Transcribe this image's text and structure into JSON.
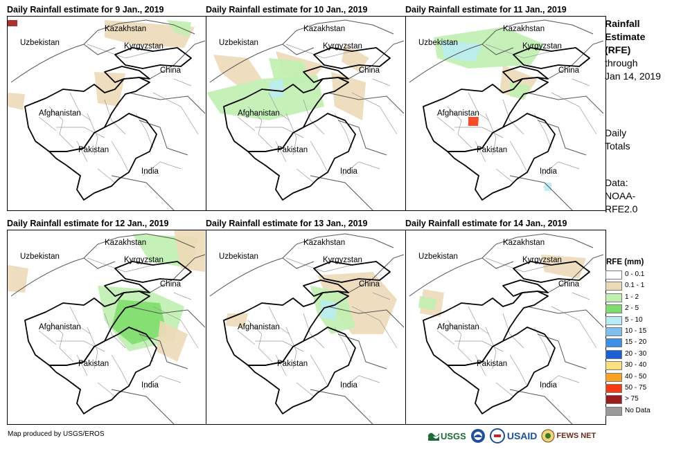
{
  "panels": [
    {
      "title": "Daily Rainfall estimate for 9 Jan., 2019"
    },
    {
      "title": "Daily Rainfall estimate for 10 Jan., 2019"
    },
    {
      "title": "Daily Rainfall estimate for 11 Jan., 2019"
    },
    {
      "title": "Daily Rainfall estimate for 12 Jan., 2019"
    },
    {
      "title": "Daily Rainfall estimate for 13 Jan., 2019"
    },
    {
      "title": "Daily Rainfall estimate for 14 Jan., 2019"
    }
  ],
  "map_labels": {
    "kazakhstan": "Kazakhstan",
    "uzbekistan": "Uzbekistan",
    "kyrgyzstan": "Kyrgyzstan",
    "china": "China",
    "afghanistan": "Afghanistan",
    "pakistan": "Pakistan",
    "india": "India"
  },
  "side": {
    "title_line1": "Rainfall",
    "title_line2": "Estimate",
    "title_line3": "(RFE)",
    "through": "through",
    "date": "Jan 14, 2019",
    "daily1": "Daily",
    "daily2": "Totals",
    "data1": "Data:",
    "data2": "NOAA-",
    "data3": "RFE2.0"
  },
  "legend": {
    "title": "RFE (mm)",
    "items": [
      {
        "label": "0 - 0.1",
        "color": "#ffffff"
      },
      {
        "label": "0.1 - 1",
        "color": "#ecd9b7"
      },
      {
        "label": "1 - 2",
        "color": "#bff0b0"
      },
      {
        "label": "2 - 5",
        "color": "#7ddd6c"
      },
      {
        "label": "5 - 10",
        "color": "#b9ecf2"
      },
      {
        "label": "10 - 15",
        "color": "#7fbfef"
      },
      {
        "label": "15 - 20",
        "color": "#3b8fe6"
      },
      {
        "label": "20 - 30",
        "color": "#1c5ed4"
      },
      {
        "label": "30 - 40",
        "color": "#fbe07f"
      },
      {
        "label": "40 - 50",
        "color": "#f9a326"
      },
      {
        "label": "50 - 75",
        "color": "#f43a10"
      },
      {
        "label": "> 75",
        "color": "#9e1b1b"
      },
      {
        "label": "No Data",
        "color": "#9a9a9a"
      }
    ]
  },
  "credit": "Map produced by USGS/EROS",
  "logos": {
    "usgs": "USGS",
    "usaid": "USAID",
    "fews": "FEWS NET"
  }
}
